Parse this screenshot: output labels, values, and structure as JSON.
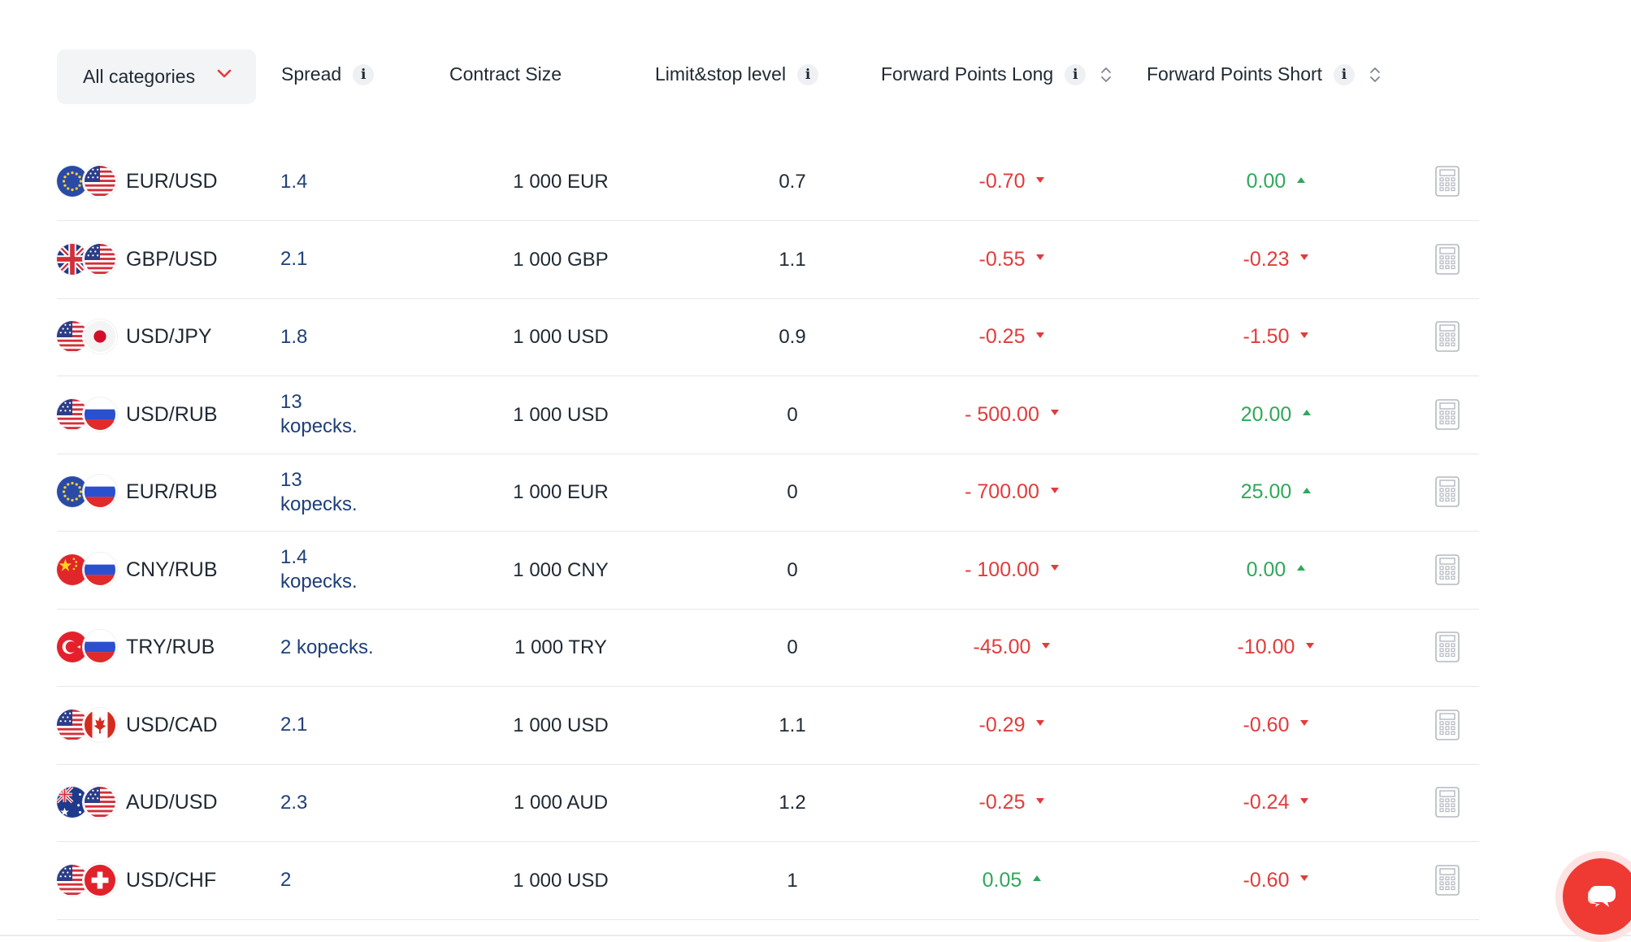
{
  "filter": {
    "category_label": "All categories"
  },
  "columns": {
    "spread": "Spread",
    "contract_size": "Contract Size",
    "limit_stop": "Limit&stop level",
    "forward_long": "Forward Points Long",
    "forward_short": "Forward Points Short",
    "info_glyph": "i"
  },
  "rows": [
    {
      "pair": "EUR/USD",
      "flags": [
        "eu",
        "us"
      ],
      "spread": "1.4",
      "contract": "1 000 EUR",
      "limit": "0.7",
      "long": "-0.70",
      "long_dir": "down",
      "short": "0.00",
      "short_dir": "up"
    },
    {
      "pair": "GBP/USD",
      "flags": [
        "gb",
        "us"
      ],
      "spread": "2.1",
      "contract": "1 000 GBP",
      "limit": "1.1",
      "long": "-0.55",
      "long_dir": "down",
      "short": "-0.23",
      "short_dir": "down"
    },
    {
      "pair": "USD/JPY",
      "flags": [
        "us",
        "jp"
      ],
      "spread": "1.8",
      "contract": "1 000 USD",
      "limit": "0.9",
      "long": "-0.25",
      "long_dir": "down",
      "short": "-1.50",
      "short_dir": "down"
    },
    {
      "pair": "USD/RUB",
      "flags": [
        "us",
        "ru"
      ],
      "spread": "13 kopecks.",
      "contract": "1 000 USD",
      "limit": "0",
      "long": "- 500.00",
      "long_dir": "down",
      "short": "20.00",
      "short_dir": "up"
    },
    {
      "pair": "EUR/RUB",
      "flags": [
        "eu",
        "ru"
      ],
      "spread": "13 kopecks.",
      "contract": "1 000 EUR",
      "limit": "0",
      "long": "- 700.00",
      "long_dir": "down",
      "short": "25.00",
      "short_dir": "up"
    },
    {
      "pair": "CNY/RUB",
      "flags": [
        "cn",
        "ru"
      ],
      "spread": "1.4 kopecks.",
      "contract": "1 000 CNY",
      "limit": "0",
      "long": "- 100.00",
      "long_dir": "down",
      "short": "0.00",
      "short_dir": "up"
    },
    {
      "pair": "TRY/RUB",
      "flags": [
        "tr",
        "ru"
      ],
      "spread": "2 kopecks.",
      "contract": "1 000 TRY",
      "limit": "0",
      "long": "-45.00",
      "long_dir": "down",
      "short": "-10.00",
      "short_dir": "down"
    },
    {
      "pair": "USD/CAD",
      "flags": [
        "us",
        "ca"
      ],
      "spread": "2.1",
      "contract": "1 000 USD",
      "limit": "1.1",
      "long": "-0.29",
      "long_dir": "down",
      "short": "-0.60",
      "short_dir": "down"
    },
    {
      "pair": "AUD/USD",
      "flags": [
        "au",
        "us"
      ],
      "spread": "2.3",
      "contract": "1 000 AUD",
      "limit": "1.2",
      "long": "-0.25",
      "long_dir": "down",
      "short": "-0.24",
      "short_dir": "down"
    },
    {
      "pair": "USD/CHF",
      "flags": [
        "us",
        "ch"
      ],
      "spread": "2",
      "contract": "1 000 USD",
      "limit": "1",
      "long": "0.05",
      "long_dir": "up",
      "short": "-0.60",
      "short_dir": "down"
    }
  ],
  "icons": {
    "dropdown": "chevron-down-icon",
    "info": "info-icon",
    "sort": "sort-icon",
    "calculator": "calculator-icon",
    "chat": "chat-icon"
  },
  "colors": {
    "negative": "#e23b3b",
    "positive": "#2fa85a",
    "spread_link": "#1e3f7a",
    "chat_button": "#ee3a33"
  }
}
